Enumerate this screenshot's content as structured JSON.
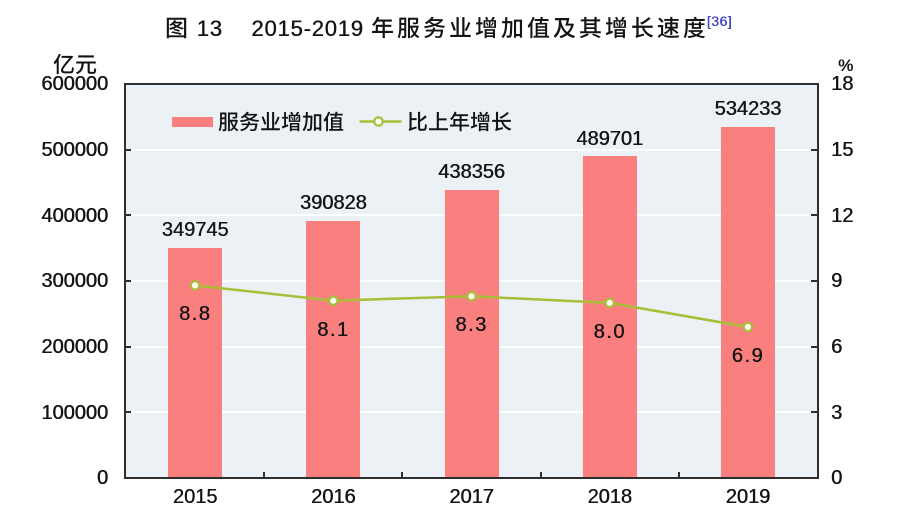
{
  "title": {
    "full_text": "图 13  2015-2019 年服务业增加值及其增长速度[36]",
    "figure_label": "图",
    "figure_number": "13",
    "year_range": "2015-2019",
    "subject_cjk": "年服务业增加值及其增长速度",
    "footnote_ref": "[36]"
  },
  "legend": {
    "bar_label": "服务业增加值",
    "line_label": "比上年增长"
  },
  "axes": {
    "left": {
      "unit": "亿元",
      "tick_labels": [
        "600000",
        "500000",
        "400000",
        "300000",
        "200000",
        "100000",
        "0"
      ]
    },
    "right": {
      "unit": "%",
      "tick_labels": [
        "18",
        "15",
        "12",
        "9",
        "6",
        "3",
        "0"
      ]
    },
    "x": {
      "tick_labels": [
        "2015",
        "2016",
        "2017",
        "2018",
        "2019"
      ]
    }
  },
  "colors": {
    "bar": "#fa8080",
    "line": "#a7bf37",
    "marker_fill": "#fdfef2",
    "plot_background": "#ebf1f4",
    "gridline": "#ffffff",
    "frame": "#2e2e2e",
    "text": "#141414",
    "footnote": "#4444cc"
  },
  "chart_data": {
    "type": "combo",
    "title": "图 13  2015-2019 年服务业增加值及其增长速度",
    "categories": [
      "2015",
      "2016",
      "2017",
      "2018",
      "2019"
    ],
    "series": [
      {
        "name": "服务业增加值",
        "type": "bar",
        "axis": "left",
        "unit": "亿元",
        "values": [
          349745,
          390828,
          438356,
          489701,
          534233
        ],
        "labels": [
          "349745",
          "390828",
          "438356",
          "489701",
          "534233"
        ]
      },
      {
        "name": "比上年增长",
        "type": "line",
        "axis": "right",
        "unit": "%",
        "values": [
          8.8,
          8.1,
          8.3,
          8.0,
          6.9
        ],
        "labels": [
          "8.8",
          "8.1",
          "8.3",
          "8.0",
          "6.9"
        ]
      }
    ],
    "left_axis": {
      "label": "亿元",
      "range": [
        0,
        600000
      ],
      "step": 100000
    },
    "right_axis": {
      "label": "%",
      "range": [
        0,
        18
      ],
      "step": 3
    },
    "grid": true,
    "legend_position": "top-inside"
  }
}
